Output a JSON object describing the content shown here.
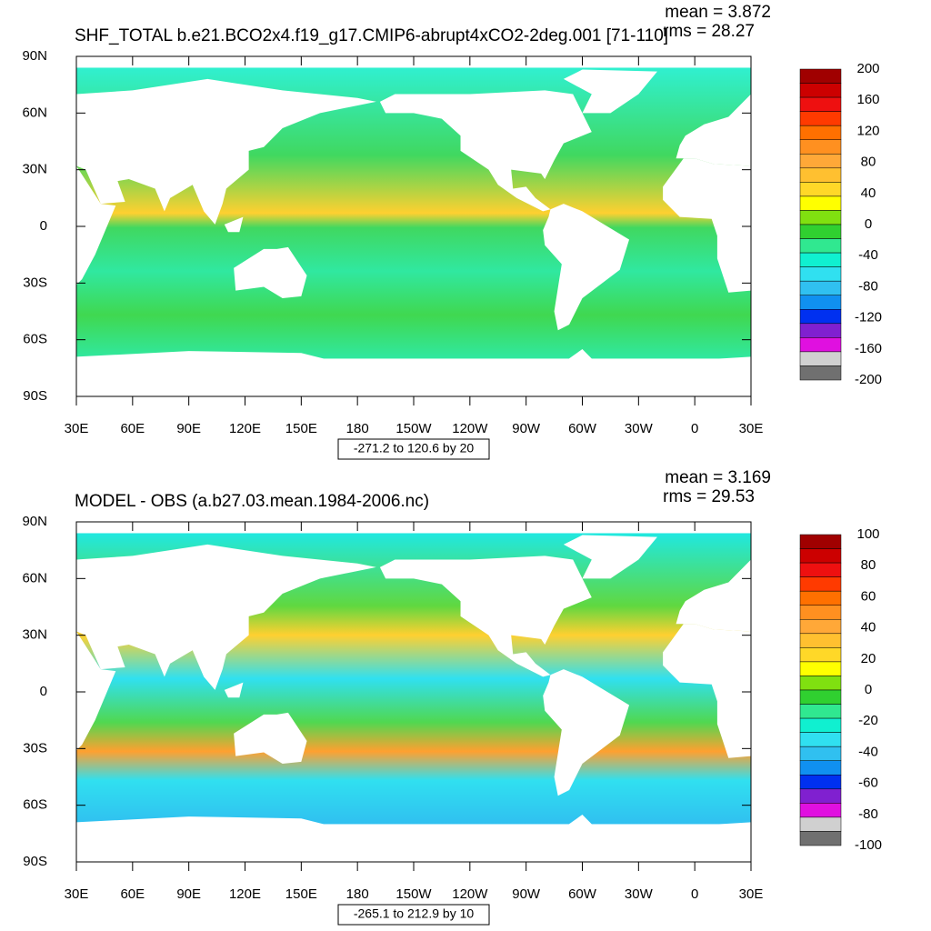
{
  "panels": [
    {
      "title": "SHF_TOTAL b.e21.BCO2x4.f19_g17.CMIP6-abrupt4xCO2-2deg.001 [71-110]",
      "mean": "mean = 3.872",
      "rms": "rms = 28.27",
      "lat_labels": [
        "90N",
        "60N",
        "30N",
        "0",
        "30S",
        "60S",
        "90S"
      ],
      "lon_labels": [
        "30E",
        "60E",
        "90E",
        "120E",
        "150E",
        "180",
        "150W",
        "120W",
        "90W",
        "60W",
        "30W",
        "0",
        "30E"
      ],
      "colorbar": {
        "labels": [
          "200",
          "160",
          "120",
          "80",
          "40",
          "0",
          "-40",
          "-80",
          "-120",
          "-160",
          "-200"
        ],
        "colors": [
          "#a00000",
          "#cc0000",
          "#ee1010",
          "#ff3a00",
          "#ff7000",
          "#ff9020",
          "#ffa838",
          "#ffc030",
          "#ffd828",
          "#ffff00",
          "#80e010",
          "#30d030",
          "#30e890",
          "#10f0d0",
          "#30e0f0",
          "#30c0f0",
          "#1090f0",
          "#0030f0",
          "#8020d0",
          "#e010e0",
          "#d0d0d0",
          "#707070"
        ]
      },
      "info": "-271.2 to 120.6 by 20"
    },
    {
      "title": "MODEL - OBS (a.b27.03.mean.1984-2006.nc)",
      "mean": "mean = 3.169",
      "rms": "rms = 29.53",
      "lat_labels": [
        "90N",
        "60N",
        "30N",
        "0",
        "30S",
        "60S",
        "90S"
      ],
      "lon_labels": [
        "30E",
        "60E",
        "90E",
        "120E",
        "150E",
        "180",
        "150W",
        "120W",
        "90W",
        "60W",
        "30W",
        "0",
        "30E"
      ],
      "colorbar": {
        "labels": [
          "100",
          "80",
          "60",
          "40",
          "20",
          "0",
          "-20",
          "-40",
          "-60",
          "-80",
          "-100"
        ],
        "colors": [
          "#a00000",
          "#cc0000",
          "#ee1010",
          "#ff3a00",
          "#ff7000",
          "#ff9020",
          "#ffa838",
          "#ffc030",
          "#ffd828",
          "#ffff00",
          "#80e010",
          "#30d030",
          "#30e890",
          "#10f0d0",
          "#30e0f0",
          "#30c0f0",
          "#1090f0",
          "#0030f0",
          "#8020d0",
          "#e010e0",
          "#d0d0d0",
          "#707070"
        ]
      },
      "info": "-265.1 to 212.9 by 10"
    }
  ]
}
